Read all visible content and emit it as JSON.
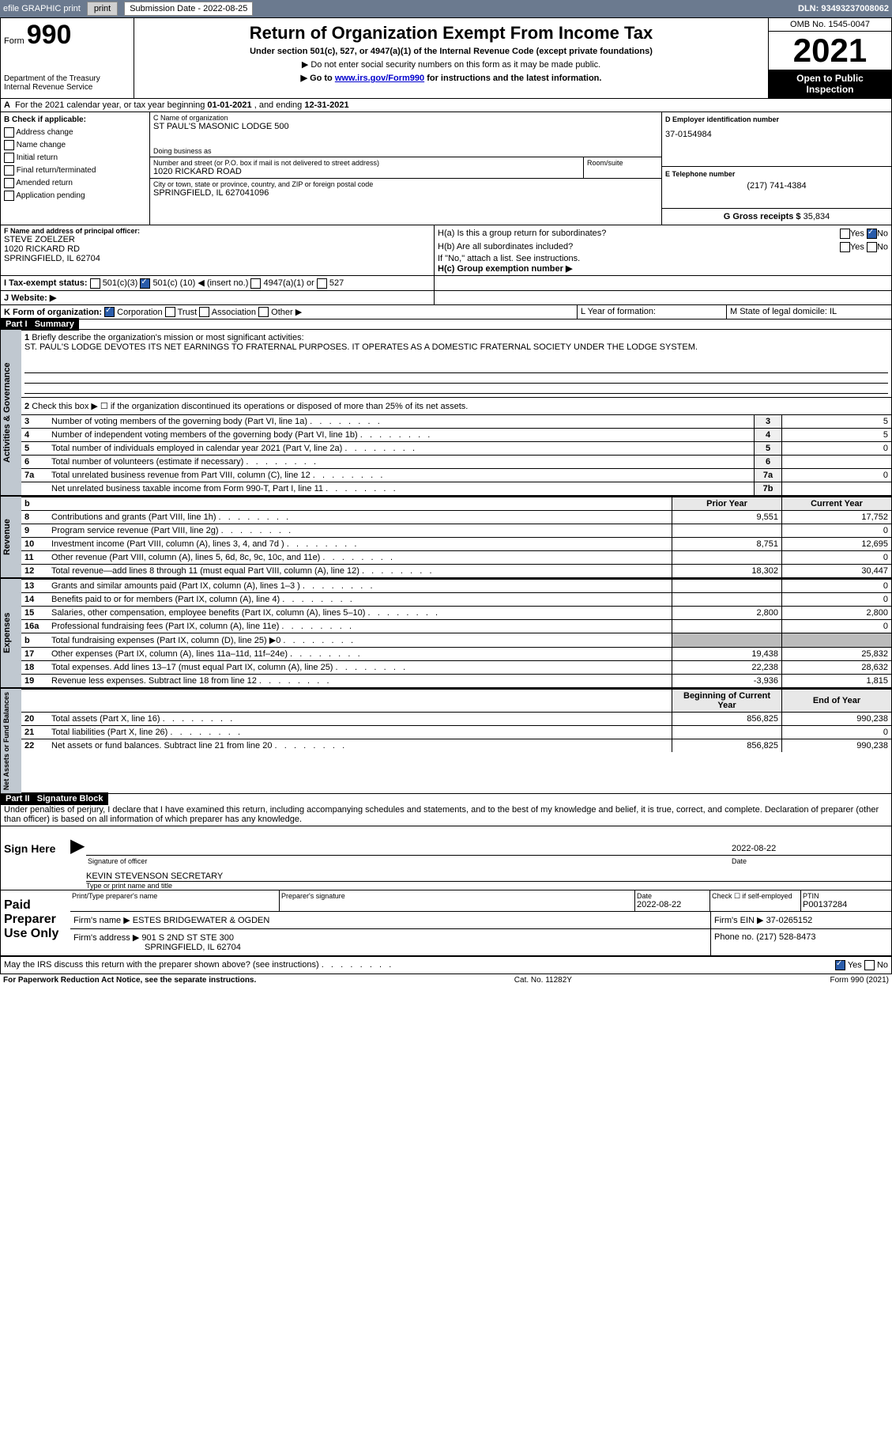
{
  "topbar": {
    "efile": "efile GRAPHIC print",
    "submission_label": "Submission Date - 2022-08-25",
    "dln": "DLN: 93493237008062"
  },
  "header": {
    "form_label": "Form",
    "form_num": "990",
    "dept": "Department of the Treasury",
    "irs": "Internal Revenue Service",
    "title": "Return of Organization Exempt From Income Tax",
    "subtitle": "Under section 501(c), 527, or 4947(a)(1) of the Internal Revenue Code (except private foundations)",
    "arrow1": "▶ Do not enter social security numbers on this form as it may be made public.",
    "arrow2_pre": "▶ Go to ",
    "arrow2_link": "www.irs.gov/Form990",
    "arrow2_post": " for instructions and the latest information.",
    "omb": "OMB No. 1545-0047",
    "year": "2021",
    "open": "Open to Public Inspection"
  },
  "periodA": {
    "text_pre": "For the 2021 calendar year, or tax year beginning ",
    "begin": "01-01-2021",
    "mid": " , and ending ",
    "end": "12-31-2021"
  },
  "sectionB": {
    "label": "B Check if applicable:",
    "opts": [
      "Address change",
      "Name change",
      "Initial return",
      "Final return/terminated",
      "Amended return",
      "Application pending"
    ]
  },
  "sectionC": {
    "name_label": "C Name of organization",
    "name": "ST PAUL'S MASONIC LODGE 500",
    "dba_label": "Doing business as",
    "addr_label": "Number and street (or P.O. box if mail is not delivered to street address)",
    "addr": "1020 RICKARD ROAD",
    "room_label": "Room/suite",
    "city_label": "City or town, state or province, country, and ZIP or foreign postal code",
    "city": "SPRINGFIELD, IL  627041096"
  },
  "sectionD": {
    "label": "D Employer identification number",
    "ein": "37-0154984"
  },
  "sectionE": {
    "label": "E Telephone number",
    "phone": "(217) 741-4384"
  },
  "sectionG": {
    "label": "G Gross receipts $",
    "amount": "35,834"
  },
  "sectionF": {
    "label": "F Name and address of principal officer:",
    "name": "STEVE ZOELZER",
    "addr1": "1020 RICKARD RD",
    "addr2": "SPRINGFIELD, IL  62704"
  },
  "sectionH": {
    "a": "H(a) Is this a group return for subordinates?",
    "b": "H(b) Are all subordinates included?",
    "b_note": "If \"No,\" attach a list. See instructions.",
    "c": "H(c) Group exemption number ▶",
    "yes": "Yes",
    "no": "No"
  },
  "sectionI": {
    "label": "I Tax-exempt status:",
    "o1": "501(c)(3)",
    "o2": "501(c) (",
    "o2_num": "10",
    "o2_post": ") ◀ (insert no.)",
    "o3": "4947(a)(1) or",
    "o4": "527"
  },
  "sectionJ": {
    "label": "J Website: ▶"
  },
  "sectionK": {
    "label": "K Form of organization:",
    "o1": "Corporation",
    "o2": "Trust",
    "o3": "Association",
    "o4": "Other ▶"
  },
  "sectionL": {
    "label": "L Year of formation:"
  },
  "sectionM": {
    "label": "M State of legal domicile: IL"
  },
  "part1": {
    "title": "Part I",
    "name": "Summary",
    "line1_label": "Briefly describe the organization's mission or most significant activities:",
    "line1_text": "ST. PAUL'S LODGE DEVOTES ITS NET EARNINGS TO FRATERNAL PURPOSES. IT OPERATES AS A DOMESTIC FRATERNAL SOCIETY UNDER THE LODGE SYSTEM.",
    "line2": "Check this box ▶ ☐ if the organization discontinued its operations or disposed of more than 25% of its net assets.",
    "prior_hdr": "Prior Year",
    "current_hdr": "Current Year",
    "begin_hdr": "Beginning of Current Year",
    "end_hdr": "End of Year",
    "vert1": "Activities & Governance",
    "vert2": "Revenue",
    "vert3": "Expenses",
    "vert4": "Net Assets or Fund Balances",
    "rows_gov": [
      {
        "n": "3",
        "t": "Number of voting members of the governing body (Part VI, line 1a)",
        "box": "3",
        "v": "5"
      },
      {
        "n": "4",
        "t": "Number of independent voting members of the governing body (Part VI, line 1b)",
        "box": "4",
        "v": "5"
      },
      {
        "n": "5",
        "t": "Total number of individuals employed in calendar year 2021 (Part V, line 2a)",
        "box": "5",
        "v": "0"
      },
      {
        "n": "6",
        "t": "Total number of volunteers (estimate if necessary)",
        "box": "6",
        "v": ""
      },
      {
        "n": "7a",
        "t": "Total unrelated business revenue from Part VIII, column (C), line 12",
        "box": "7a",
        "v": "0"
      },
      {
        "n": "",
        "t": "Net unrelated business taxable income from Form 990-T, Part I, line 11",
        "box": "7b",
        "v": ""
      }
    ],
    "rows_rev": [
      {
        "n": "8",
        "t": "Contributions and grants (Part VIII, line 1h)",
        "p": "9,551",
        "c": "17,752"
      },
      {
        "n": "9",
        "t": "Program service revenue (Part VIII, line 2g)",
        "p": "",
        "c": "0"
      },
      {
        "n": "10",
        "t": "Investment income (Part VIII, column (A), lines 3, 4, and 7d )",
        "p": "8,751",
        "c": "12,695"
      },
      {
        "n": "11",
        "t": "Other revenue (Part VIII, column (A), lines 5, 6d, 8c, 9c, 10c, and 11e)",
        "p": "",
        "c": "0"
      },
      {
        "n": "12",
        "t": "Total revenue—add lines 8 through 11 (must equal Part VIII, column (A), line 12)",
        "p": "18,302",
        "c": "30,447"
      }
    ],
    "rows_exp": [
      {
        "n": "13",
        "t": "Grants and similar amounts paid (Part IX, column (A), lines 1–3 )",
        "p": "",
        "c": "0"
      },
      {
        "n": "14",
        "t": "Benefits paid to or for members (Part IX, column (A), line 4)",
        "p": "",
        "c": "0"
      },
      {
        "n": "15",
        "t": "Salaries, other compensation, employee benefits (Part IX, column (A), lines 5–10)",
        "p": "2,800",
        "c": "2,800"
      },
      {
        "n": "16a",
        "t": "Professional fundraising fees (Part IX, column (A), line 11e)",
        "p": "",
        "c": "0"
      },
      {
        "n": "b",
        "t": "Total fundraising expenses (Part IX, column (D), line 25) ▶0",
        "p": "shade",
        "c": "shade"
      },
      {
        "n": "17",
        "t": "Other expenses (Part IX, column (A), lines 11a–11d, 11f–24e)",
        "p": "19,438",
        "c": "25,832"
      },
      {
        "n": "18",
        "t": "Total expenses. Add lines 13–17 (must equal Part IX, column (A), line 25)",
        "p": "22,238",
        "c": "28,632"
      },
      {
        "n": "19",
        "t": "Revenue less expenses. Subtract line 18 from line 12",
        "p": "-3,936",
        "c": "1,815"
      }
    ],
    "rows_net": [
      {
        "n": "20",
        "t": "Total assets (Part X, line 16)",
        "p": "856,825",
        "c": "990,238"
      },
      {
        "n": "21",
        "t": "Total liabilities (Part X, line 26)",
        "p": "",
        "c": "0"
      },
      {
        "n": "22",
        "t": "Net assets or fund balances. Subtract line 21 from line 20",
        "p": "856,825",
        "c": "990,238"
      }
    ],
    "b_row": "b"
  },
  "part2": {
    "title": "Part II",
    "name": "Signature Block",
    "penalty": "Under penalties of perjury, I declare that I have examined this return, including accompanying schedules and statements, and to the best of my knowledge and belief, it is true, correct, and complete. Declaration of preparer (other than officer) is based on all information of which preparer has any knowledge.",
    "sign_here": "Sign Here",
    "sig_officer": "Signature of officer",
    "sig_date": "2022-08-22",
    "date_label": "Date",
    "officer_name": "KEVIN STEVENSON SECRETARY",
    "type_name": "Type or print name and title",
    "paid": "Paid Preparer Use Only",
    "prep_name_label": "Print/Type preparer's name",
    "prep_sig_label": "Preparer's signature",
    "prep_date_label": "Date",
    "prep_date": "2022-08-22",
    "check_self": "Check ☐ if self-employed",
    "ptin_label": "PTIN",
    "ptin": "P00137284",
    "firm_name_label": "Firm's name    ▶",
    "firm_name": "ESTES BRIDGEWATER & OGDEN",
    "firm_ein_label": "Firm's EIN ▶",
    "firm_ein": "37-0265152",
    "firm_addr_label": "Firm's address ▶",
    "firm_addr1": "901 S 2ND ST STE 300",
    "firm_addr2": "SPRINGFIELD, IL  62704",
    "firm_phone_label": "Phone no.",
    "firm_phone": "(217) 528-8473",
    "may_irs": "May the IRS discuss this return with the preparer shown above? (see instructions)"
  },
  "footer": {
    "left": "For Paperwork Reduction Act Notice, see the separate instructions.",
    "mid": "Cat. No. 11282Y",
    "right": "Form 990 (2021)"
  }
}
